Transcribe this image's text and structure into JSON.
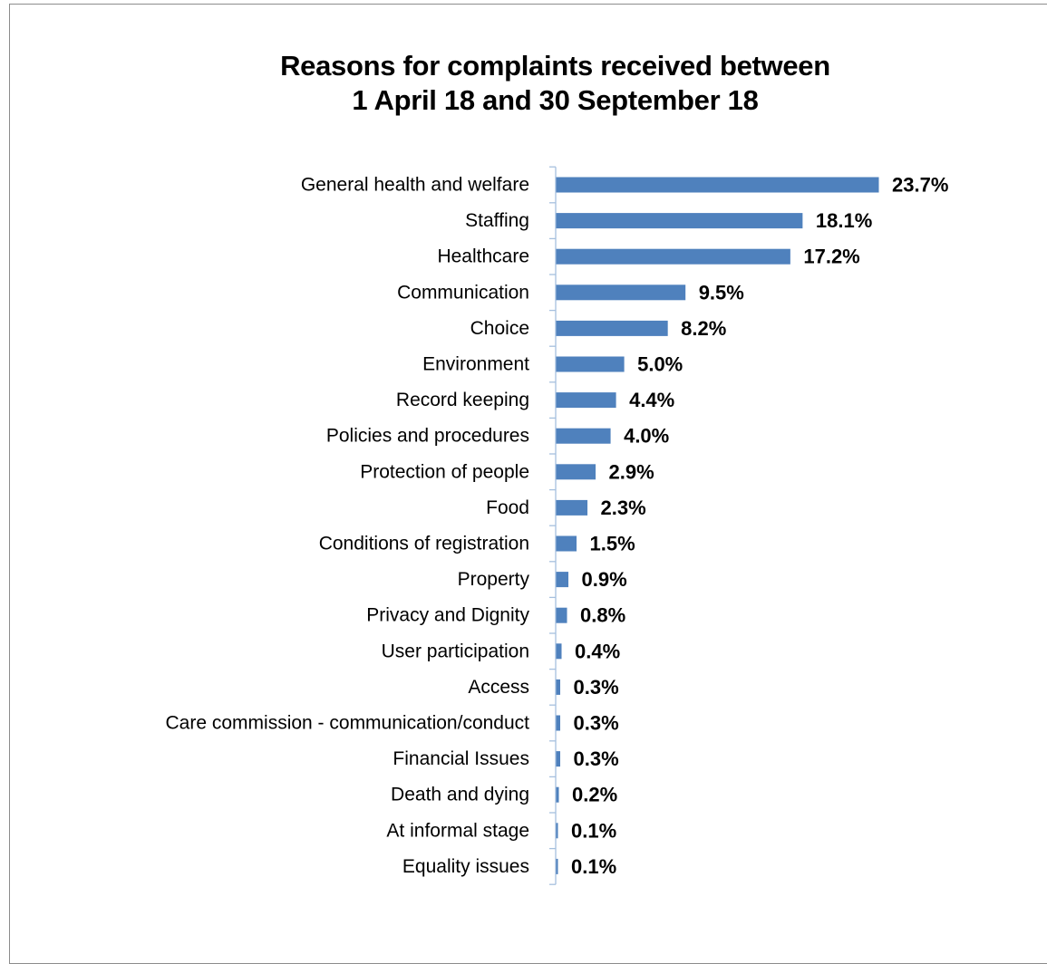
{
  "chart_data": {
    "type": "bar",
    "orientation": "horizontal",
    "title": [
      "Reasons for complaints received between",
      "1 April 18  and  30 September 18"
    ],
    "categories": [
      "General health and welfare",
      "Staffing",
      "Healthcare",
      "Communication",
      "Choice",
      "Environment",
      "Record keeping",
      "Policies and procedures",
      "Protection of people",
      "Food",
      "Conditions of registration",
      "Property",
      "Privacy and Dignity",
      "User participation",
      "Access",
      "Care commission - communication/conduct",
      "Financial Issues",
      "Death and dying",
      "At informal stage",
      "Equality issues"
    ],
    "values": [
      23.7,
      18.1,
      17.2,
      9.5,
      8.2,
      5.0,
      4.4,
      4.0,
      2.9,
      2.3,
      1.5,
      0.9,
      0.8,
      0.4,
      0.3,
      0.3,
      0.3,
      0.2,
      0.1,
      0.1
    ],
    "value_labels": [
      "23.7%",
      "18.1%",
      "17.2%",
      "9.5%",
      "8.2%",
      "5.0%",
      "4.4%",
      "4.0%",
      "2.9%",
      "2.3%",
      "1.5%",
      "0.9%",
      "0.8%",
      "0.4%",
      "0.3%",
      "0.3%",
      "0.3%",
      "0.2%",
      "0.1%",
      "0.1%"
    ],
    "unit": "%",
    "xlim": [
      0,
      23.7
    ],
    "grid": false,
    "legend": "none",
    "bar_color": "#4f81bd",
    "axis_color": "#a6c0de"
  }
}
